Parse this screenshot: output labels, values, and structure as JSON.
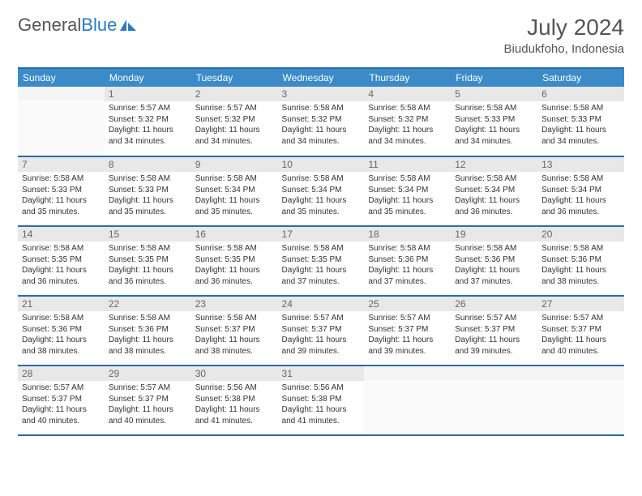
{
  "logo": {
    "text1": "General",
    "text2": "Blue"
  },
  "title": "July 2024",
  "location": "Biudukfoho, Indonesia",
  "headers": [
    "Sunday",
    "Monday",
    "Tuesday",
    "Wednesday",
    "Thursday",
    "Friday",
    "Saturday"
  ],
  "colors": {
    "header_bg": "#3b8bc9",
    "header_border": "#2b6ca3",
    "daynum_bg": "#e8e8e8",
    "text": "#333333"
  },
  "weeks": [
    [
      {
        "n": "",
        "sr": "",
        "ss": "",
        "dl": ""
      },
      {
        "n": "1",
        "sr": "Sunrise: 5:57 AM",
        "ss": "Sunset: 5:32 PM",
        "dl": "Daylight: 11 hours and 34 minutes."
      },
      {
        "n": "2",
        "sr": "Sunrise: 5:57 AM",
        "ss": "Sunset: 5:32 PM",
        "dl": "Daylight: 11 hours and 34 minutes."
      },
      {
        "n": "3",
        "sr": "Sunrise: 5:58 AM",
        "ss": "Sunset: 5:32 PM",
        "dl": "Daylight: 11 hours and 34 minutes."
      },
      {
        "n": "4",
        "sr": "Sunrise: 5:58 AM",
        "ss": "Sunset: 5:32 PM",
        "dl": "Daylight: 11 hours and 34 minutes."
      },
      {
        "n": "5",
        "sr": "Sunrise: 5:58 AM",
        "ss": "Sunset: 5:33 PM",
        "dl": "Daylight: 11 hours and 34 minutes."
      },
      {
        "n": "6",
        "sr": "Sunrise: 5:58 AM",
        "ss": "Sunset: 5:33 PM",
        "dl": "Daylight: 11 hours and 34 minutes."
      }
    ],
    [
      {
        "n": "7",
        "sr": "Sunrise: 5:58 AM",
        "ss": "Sunset: 5:33 PM",
        "dl": "Daylight: 11 hours and 35 minutes."
      },
      {
        "n": "8",
        "sr": "Sunrise: 5:58 AM",
        "ss": "Sunset: 5:33 PM",
        "dl": "Daylight: 11 hours and 35 minutes."
      },
      {
        "n": "9",
        "sr": "Sunrise: 5:58 AM",
        "ss": "Sunset: 5:34 PM",
        "dl": "Daylight: 11 hours and 35 minutes."
      },
      {
        "n": "10",
        "sr": "Sunrise: 5:58 AM",
        "ss": "Sunset: 5:34 PM",
        "dl": "Daylight: 11 hours and 35 minutes."
      },
      {
        "n": "11",
        "sr": "Sunrise: 5:58 AM",
        "ss": "Sunset: 5:34 PM",
        "dl": "Daylight: 11 hours and 35 minutes."
      },
      {
        "n": "12",
        "sr": "Sunrise: 5:58 AM",
        "ss": "Sunset: 5:34 PM",
        "dl": "Daylight: 11 hours and 36 minutes."
      },
      {
        "n": "13",
        "sr": "Sunrise: 5:58 AM",
        "ss": "Sunset: 5:34 PM",
        "dl": "Daylight: 11 hours and 36 minutes."
      }
    ],
    [
      {
        "n": "14",
        "sr": "Sunrise: 5:58 AM",
        "ss": "Sunset: 5:35 PM",
        "dl": "Daylight: 11 hours and 36 minutes."
      },
      {
        "n": "15",
        "sr": "Sunrise: 5:58 AM",
        "ss": "Sunset: 5:35 PM",
        "dl": "Daylight: 11 hours and 36 minutes."
      },
      {
        "n": "16",
        "sr": "Sunrise: 5:58 AM",
        "ss": "Sunset: 5:35 PM",
        "dl": "Daylight: 11 hours and 36 minutes."
      },
      {
        "n": "17",
        "sr": "Sunrise: 5:58 AM",
        "ss": "Sunset: 5:35 PM",
        "dl": "Daylight: 11 hours and 37 minutes."
      },
      {
        "n": "18",
        "sr": "Sunrise: 5:58 AM",
        "ss": "Sunset: 5:36 PM",
        "dl": "Daylight: 11 hours and 37 minutes."
      },
      {
        "n": "19",
        "sr": "Sunrise: 5:58 AM",
        "ss": "Sunset: 5:36 PM",
        "dl": "Daylight: 11 hours and 37 minutes."
      },
      {
        "n": "20",
        "sr": "Sunrise: 5:58 AM",
        "ss": "Sunset: 5:36 PM",
        "dl": "Daylight: 11 hours and 38 minutes."
      }
    ],
    [
      {
        "n": "21",
        "sr": "Sunrise: 5:58 AM",
        "ss": "Sunset: 5:36 PM",
        "dl": "Daylight: 11 hours and 38 minutes."
      },
      {
        "n": "22",
        "sr": "Sunrise: 5:58 AM",
        "ss": "Sunset: 5:36 PM",
        "dl": "Daylight: 11 hours and 38 minutes."
      },
      {
        "n": "23",
        "sr": "Sunrise: 5:58 AM",
        "ss": "Sunset: 5:37 PM",
        "dl": "Daylight: 11 hours and 38 minutes."
      },
      {
        "n": "24",
        "sr": "Sunrise: 5:57 AM",
        "ss": "Sunset: 5:37 PM",
        "dl": "Daylight: 11 hours and 39 minutes."
      },
      {
        "n": "25",
        "sr": "Sunrise: 5:57 AM",
        "ss": "Sunset: 5:37 PM",
        "dl": "Daylight: 11 hours and 39 minutes."
      },
      {
        "n": "26",
        "sr": "Sunrise: 5:57 AM",
        "ss": "Sunset: 5:37 PM",
        "dl": "Daylight: 11 hours and 39 minutes."
      },
      {
        "n": "27",
        "sr": "Sunrise: 5:57 AM",
        "ss": "Sunset: 5:37 PM",
        "dl": "Daylight: 11 hours and 40 minutes."
      }
    ],
    [
      {
        "n": "28",
        "sr": "Sunrise: 5:57 AM",
        "ss": "Sunset: 5:37 PM",
        "dl": "Daylight: 11 hours and 40 minutes."
      },
      {
        "n": "29",
        "sr": "Sunrise: 5:57 AM",
        "ss": "Sunset: 5:37 PM",
        "dl": "Daylight: 11 hours and 40 minutes."
      },
      {
        "n": "30",
        "sr": "Sunrise: 5:56 AM",
        "ss": "Sunset: 5:38 PM",
        "dl": "Daylight: 11 hours and 41 minutes."
      },
      {
        "n": "31",
        "sr": "Sunrise: 5:56 AM",
        "ss": "Sunset: 5:38 PM",
        "dl": "Daylight: 11 hours and 41 minutes."
      },
      {
        "n": "",
        "sr": "",
        "ss": "",
        "dl": ""
      },
      {
        "n": "",
        "sr": "",
        "ss": "",
        "dl": ""
      },
      {
        "n": "",
        "sr": "",
        "ss": "",
        "dl": ""
      }
    ]
  ]
}
